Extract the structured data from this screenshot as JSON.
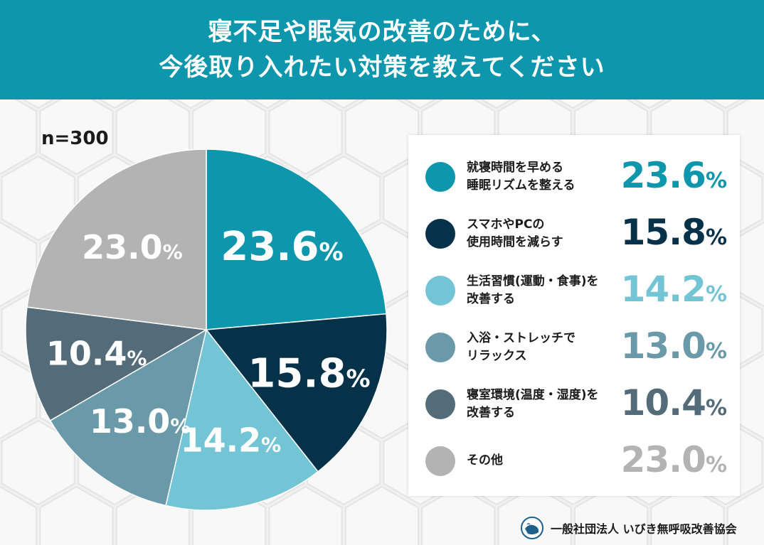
{
  "header": {
    "title_line1": "寝不足や眠気の改善のために、",
    "title_line2": "今後取り入れたい対策を教えてください"
  },
  "sample_size": "n=300",
  "footer": {
    "org": "一般社団法人 いびき無呼吸改善協会",
    "logo_icon": "sleeping-face-logo-icon"
  },
  "colors": {
    "header_bg": "#0e96ad",
    "slices": [
      "#0e96ad",
      "#063249",
      "#73c5d5",
      "#6a9aaa",
      "#546c79",
      "#b3b3b3"
    ]
  },
  "chart_data": {
    "type": "pie",
    "categories": [
      "就寝時間を早める\n睡眠リズムを整える",
      "スマホやPCの\n使用時間を減らす",
      "生活習慣(運動・食事)を\n改善する",
      "入浴・ストレッチで\nリラックス",
      "寝室環境(温度・湿度)を\n改善する",
      "その他"
    ],
    "values": [
      23.6,
      15.8,
      14.2,
      13.0,
      10.4,
      23.0
    ],
    "value_labels": [
      "23.6",
      "15.8",
      "14.2",
      "13.0",
      "10.4",
      "23.0"
    ],
    "unit": "%",
    "legend_position": "right"
  }
}
